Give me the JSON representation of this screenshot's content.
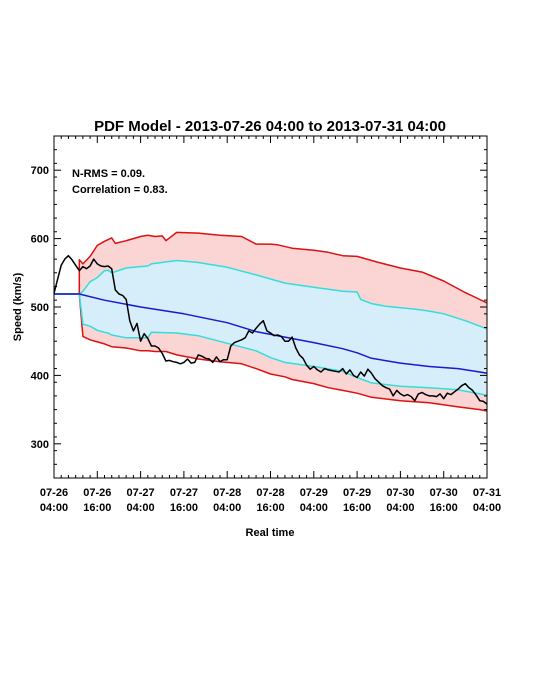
{
  "chart_data": {
    "type": "line",
    "title": "PDF Model - 2013-07-26 04:00 to 2013-07-31 04:00",
    "xlabel": "Real time",
    "ylabel": "Speed (km/s)",
    "annotations": [
      "N-RMS = 0.09.",
      "Correlation = 0.83."
    ],
    "xlim": [
      0,
      120
    ],
    "ylim": [
      250,
      750
    ],
    "x_unit": "hours since 2013-07-26 04:00",
    "x_ticks": [
      {
        "value": 0,
        "date": "07-26",
        "time": "04:00"
      },
      {
        "value": 12,
        "date": "07-26",
        "time": "16:00"
      },
      {
        "value": 24,
        "date": "07-27",
        "time": "04:00"
      },
      {
        "value": 36,
        "date": "07-27",
        "time": "16:00"
      },
      {
        "value": 48,
        "date": "07-28",
        "time": "04:00"
      },
      {
        "value": 60,
        "date": "07-28",
        "time": "16:00"
      },
      {
        "value": 72,
        "date": "07-29",
        "time": "04:00"
      },
      {
        "value": 84,
        "date": "07-29",
        "time": "16:00"
      },
      {
        "value": 96,
        "date": "07-30",
        "time": "04:00"
      },
      {
        "value": 108,
        "date": "07-30",
        "time": "16:00"
      },
      {
        "value": 120,
        "date": "07-31",
        "time": "04:00"
      }
    ],
    "y_ticks": [
      300,
      400,
      500,
      600,
      700
    ],
    "colors": {
      "outer_band_fill": "#fbd4d4",
      "inner_band_fill": "#d6eefa",
      "outer_line": "#dd1111",
      "inner_line": "#33dddd",
      "median_line": "#1a1acc",
      "observed_line": "#000000"
    },
    "series": [
      {
        "role": "outer_upper",
        "x": [
          0,
          7,
          7,
          8,
          10,
          12,
          14,
          16,
          17,
          20,
          24,
          26,
          28,
          30,
          31,
          34,
          40,
          46,
          52,
          56,
          60,
          62,
          66,
          72,
          76,
          80,
          84,
          90,
          96,
          102,
          108,
          114,
          118,
          120
        ],
        "y": [
          519,
          519,
          569,
          563,
          574,
          590,
          596,
          601,
          593,
          597,
          603,
          605,
          603,
          604,
          597,
          609,
          608,
          605,
          603,
          592,
          592,
          591,
          586,
          583,
          580,
          575,
          574,
          565,
          557,
          551,
          538,
          521,
          511,
          506
        ]
      },
      {
        "role": "inner_upper",
        "x": [
          0,
          7,
          8,
          10,
          12,
          14,
          15,
          16,
          20,
          26,
          27,
          34,
          40,
          48,
          56,
          60,
          64,
          72,
          80,
          84,
          85,
          88,
          92,
          96,
          100,
          104,
          108,
          114,
          118,
          120
        ],
        "y": [
          519,
          519,
          523,
          537,
          543,
          553,
          554,
          550,
          557,
          560,
          563,
          568,
          565,
          558,
          547,
          541,
          535,
          529,
          523,
          522,
          511,
          505,
          501,
          499,
          497,
          494,
          490,
          480,
          472,
          468
        ]
      },
      {
        "role": "median",
        "x": [
          0,
          7,
          14,
          24,
          36,
          48,
          56,
          64,
          72,
          80,
          84,
          88,
          96,
          104,
          112,
          118,
          120
        ],
        "y": [
          519,
          519,
          510,
          500,
          490,
          477,
          464,
          456,
          448,
          439,
          433,
          425,
          418,
          413,
          410,
          405,
          403
        ]
      },
      {
        "role": "inner_lower",
        "x": [
          0,
          7,
          8,
          10,
          12,
          14,
          15,
          16,
          20,
          26,
          27,
          34,
          40,
          48,
          56,
          60,
          64,
          72,
          80,
          84,
          88,
          96,
          104,
          112,
          118,
          120
        ],
        "y": [
          519,
          519,
          475,
          472,
          466,
          463,
          462,
          459,
          455,
          455,
          463,
          462,
          458,
          447,
          436,
          426,
          419,
          413,
          406,
          397,
          389,
          384,
          382,
          379,
          373,
          371
        ]
      },
      {
        "role": "outer_lower",
        "x": [
          0,
          7,
          8,
          10,
          12,
          14,
          16,
          20,
          24,
          26,
          28,
          31,
          34,
          40,
          46,
          52,
          56,
          60,
          64,
          66,
          72,
          76,
          80,
          84,
          88,
          96,
          104,
          112,
          118,
          120
        ],
        "y": [
          519,
          519,
          457,
          452,
          449,
          446,
          442,
          440,
          436,
          436,
          435,
          435,
          430,
          424,
          420,
          417,
          410,
          402,
          398,
          394,
          388,
          382,
          378,
          374,
          368,
          363,
          360,
          354,
          350,
          348
        ]
      },
      {
        "role": "observed",
        "x": [
          0,
          2,
          3,
          4,
          5,
          6,
          7,
          8,
          9,
          10,
          11,
          12,
          13,
          14,
          15,
          16,
          17,
          18,
          19,
          20,
          21,
          22,
          23,
          24,
          25,
          26,
          27,
          28,
          29,
          30,
          31,
          32,
          33,
          34,
          35,
          36,
          37,
          38,
          39,
          40,
          41,
          42,
          43,
          44,
          45,
          46,
          47,
          48,
          49,
          50,
          51,
          52,
          53,
          54,
          55,
          56,
          57,
          58,
          59,
          60,
          61,
          62,
          63,
          64,
          65,
          66,
          67,
          68,
          69,
          70,
          71,
          72,
          73,
          74,
          75,
          76,
          77,
          78,
          79,
          80,
          81,
          82,
          83,
          84,
          85,
          86,
          87,
          88,
          89,
          90,
          91,
          92,
          93,
          94,
          95,
          96,
          97,
          98,
          99,
          100,
          101,
          102,
          103,
          104,
          105,
          106,
          107,
          108,
          109,
          110,
          111,
          112,
          113,
          114,
          115,
          116,
          117,
          118,
          119,
          120
        ],
        "y": [
          520,
          561,
          570,
          575,
          569,
          561,
          553,
          559,
          556,
          560,
          570,
          563,
          560,
          559,
          560,
          556,
          525,
          519,
          517,
          511,
          480,
          465,
          476,
          450,
          461,
          454,
          443,
          443,
          440,
          432,
          421,
          422,
          420,
          419,
          417,
          419,
          424,
          418,
          419,
          430,
          428,
          425,
          424,
          419,
          427,
          420,
          423,
          423,
          443,
          448,
          450,
          452,
          455,
          465,
          462,
          469,
          475,
          480,
          465,
          462,
          458,
          459,
          457,
          450,
          450,
          456,
          440,
          430,
          425,
          415,
          409,
          413,
          408,
          405,
          410,
          408,
          407,
          406,
          405,
          410,
          402,
          408,
          400,
          397,
          405,
          399,
          409,
          403,
          395,
          390,
          385,
          382,
          380,
          370,
          378,
          373,
          370,
          372,
          369,
          363,
          373,
          375,
          372,
          370,
          370,
          369,
          373,
          366,
          374,
          372,
          376,
          380,
          385,
          388,
          382,
          378,
          371,
          363,
          362,
          358
        ]
      }
    ]
  }
}
